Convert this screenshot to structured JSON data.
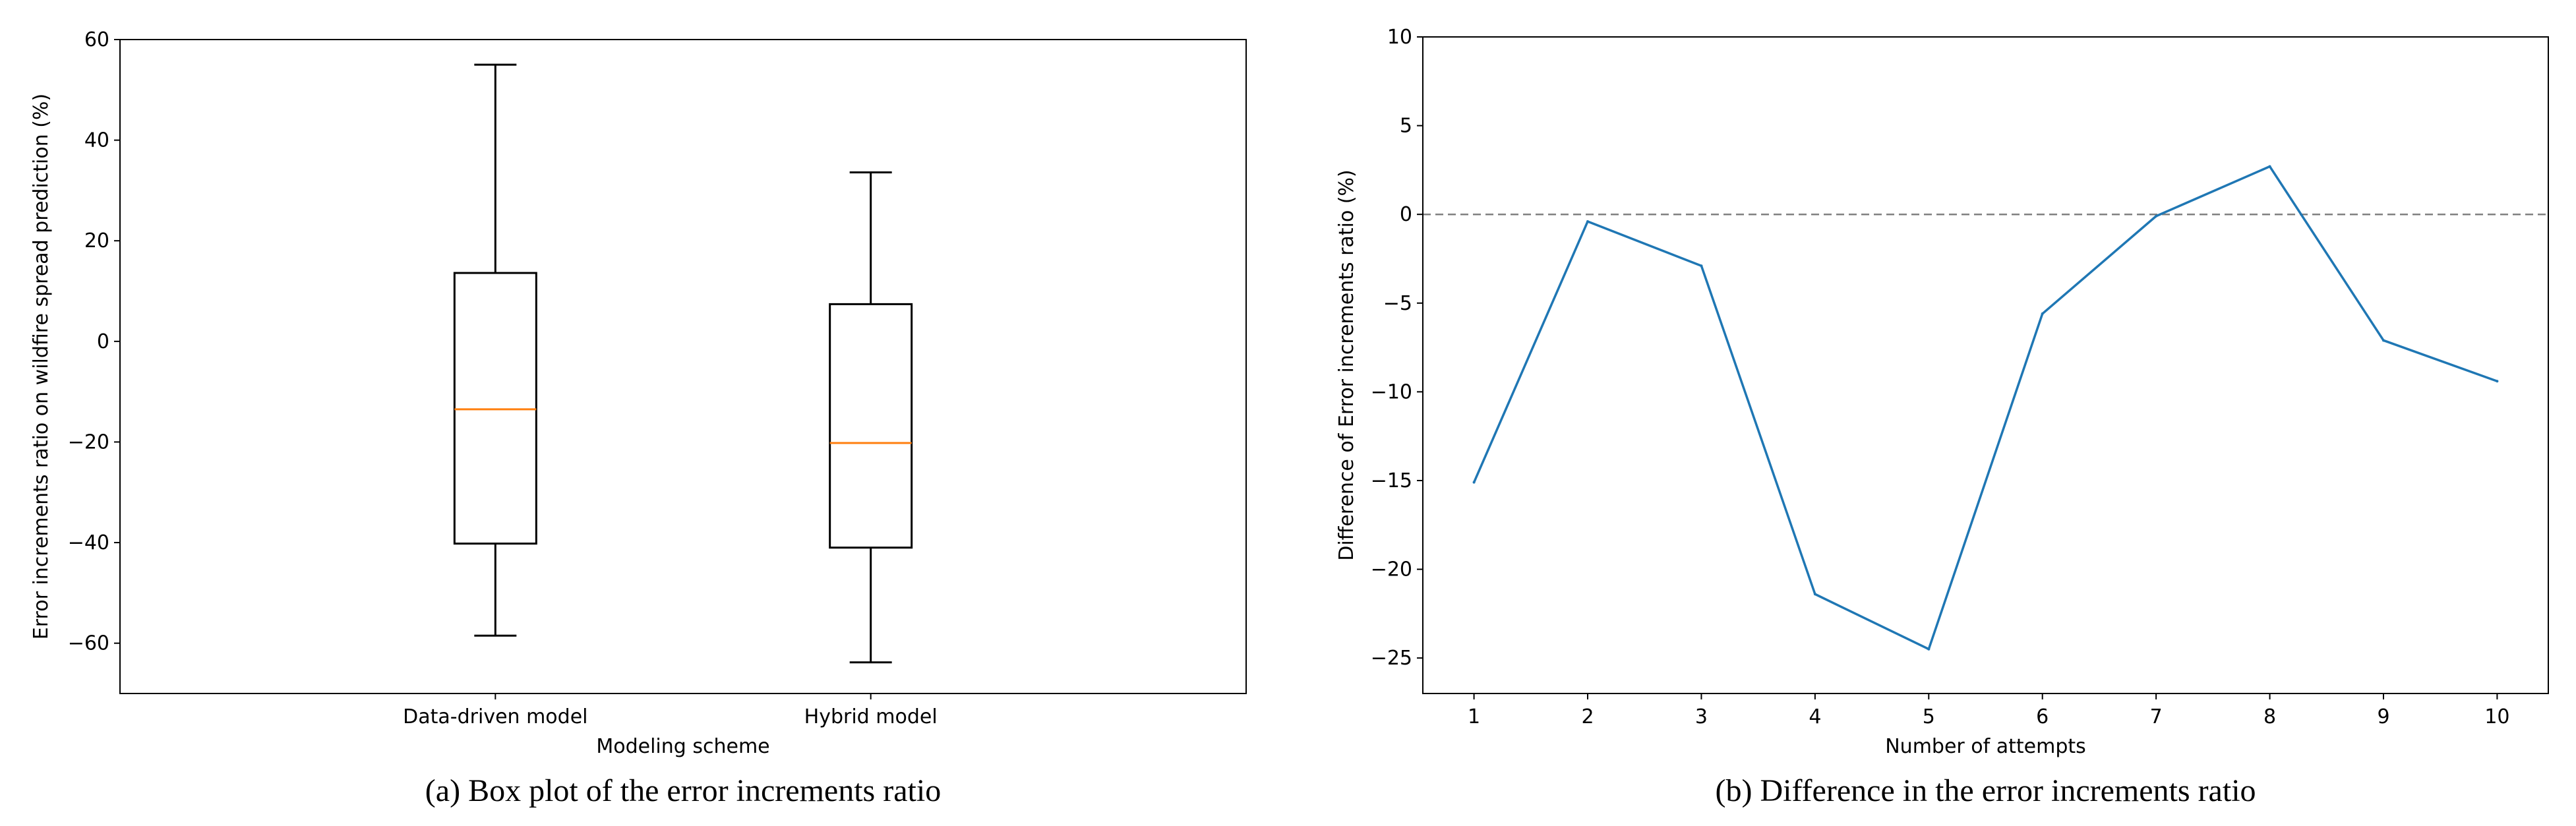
{
  "chart_data": [
    {
      "type": "box",
      "categories": [
        "Data-driven model",
        "Hybrid model"
      ],
      "boxes": [
        {
          "name": "Data-driven model",
          "whisker_low": -58.5,
          "q1": -40.2,
          "median": -13.5,
          "q3": 13.6,
          "whisker_high": 55.0
        },
        {
          "name": "Hybrid model",
          "whisker_low": -63.8,
          "q1": -41.0,
          "median": -20.2,
          "q3": 7.4,
          "whisker_high": 33.6
        }
      ],
      "xlabel": "Modeling scheme",
      "ylabel": "Error increments ratio on wildfire spread prediction  (%)",
      "ylim": [
        -70,
        60
      ],
      "yticks": [
        -60,
        -40,
        -20,
        0,
        20,
        40,
        60
      ],
      "ytick_labels": [
        "−60",
        "−40",
        "−20",
        "0",
        "20",
        "40",
        "60"
      ],
      "caption": "(a) Box plot of  the error increments ratio",
      "colors": {
        "box": "#000000",
        "median": "#ff7f0e"
      }
    },
    {
      "type": "line",
      "x": [
        1,
        2,
        3,
        4,
        5,
        6,
        7,
        8,
        9,
        10
      ],
      "series": [
        {
          "name": "difference",
          "values": [
            -15.1,
            -0.4,
            -2.9,
            -21.4,
            -24.5,
            -5.6,
            -0.1,
            2.7,
            -7.1,
            -9.4
          ]
        }
      ],
      "reference_line": {
        "y": 0,
        "style": "dashed"
      },
      "xlabel": "Number of attempts",
      "ylabel": "Difference of Error increments ratio (%)",
      "xlim": [
        0.55,
        10.45
      ],
      "ylim": [
        -27,
        10
      ],
      "xticks": [
        1,
        2,
        3,
        4,
        5,
        6,
        7,
        8,
        9,
        10
      ],
      "xtick_labels": [
        "1",
        "2",
        "3",
        "4",
        "5",
        "6",
        "7",
        "8",
        "9",
        "10"
      ],
      "yticks": [
        -25,
        -20,
        -15,
        -10,
        -5,
        0,
        5,
        10
      ],
      "ytick_labels": [
        "−25",
        "−20",
        "−15",
        "−10",
        "−5",
        "0",
        "5",
        "10"
      ],
      "caption": "(b) Difference in the error increments ratio",
      "colors": {
        "line": "#1f77b4",
        "reference": "#808080"
      }
    }
  ]
}
